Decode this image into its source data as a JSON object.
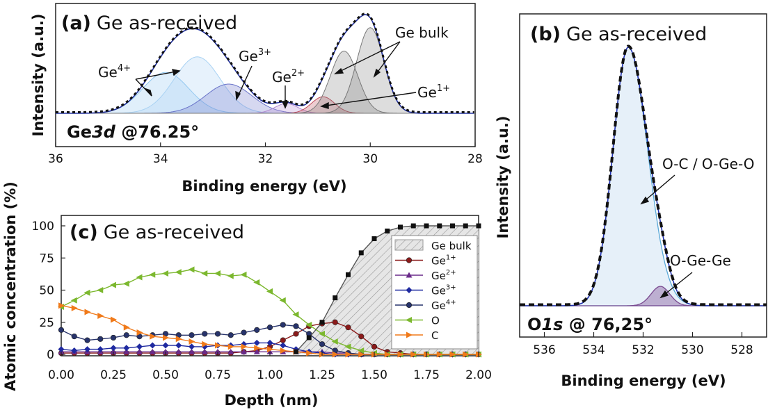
{
  "chart_data": [
    {
      "type": "line",
      "panel": "(a)",
      "title": "Ge as-received",
      "annotation": "Ge3d @76.25°",
      "annotation_parts": {
        "element": "Ge",
        "orbital": "3d",
        "angle": " @76.25°"
      },
      "xlabel": "Binding energy (eV)",
      "ylabel": "Intensity (a.u.)",
      "xlim": [
        36,
        28
      ],
      "xticks": [
        "36",
        "34",
        "32",
        "30",
        "28"
      ],
      "grid": false,
      "components": [
        {
          "name": "Ge4+",
          "center": 33.9,
          "height": 0.42,
          "color": "#8ec6ef"
        },
        {
          "name": "Ge4+",
          "center": 33.3,
          "height": 0.58,
          "color": "#a9d2f3"
        },
        {
          "name": "Ge3+",
          "center": 32.7,
          "height": 0.3,
          "color": "#6a74c9"
        },
        {
          "name": "Ge2+",
          "center": 31.6,
          "height": 0.1,
          "color": "#b28ad0"
        },
        {
          "name": "Ge1+",
          "center": 30.9,
          "height": 0.17,
          "color": "#c04a5a"
        },
        {
          "name": "Ge bulk",
          "center": 30.5,
          "height": 0.64,
          "color": "#777777"
        },
        {
          "name": "Ge bulk",
          "center": 30.0,
          "height": 0.88,
          "color": "#777777"
        }
      ],
      "labels": [
        {
          "base": "Ge",
          "sup": "4+"
        },
        {
          "base": "Ge",
          "sup": "3+"
        },
        {
          "base": "Ge",
          "sup": "2+"
        },
        {
          "base": "Ge",
          "sup": "1+"
        },
        {
          "base": "Ge bulk",
          "sup": ""
        }
      ]
    },
    {
      "type": "line",
      "panel": "(b)",
      "title": "Ge as-received",
      "annotation": "O1s @ 76,25°",
      "annotation_parts": {
        "element": "O",
        "orbital": "1s",
        "angle": " @ 76,25°"
      },
      "xlabel": "Binding energy (eV)",
      "ylabel": "Intensity (a.u.)",
      "xlim": [
        537,
        527
      ],
      "xticks": [
        "536",
        "534",
        "532",
        "530",
        "528"
      ],
      "grid": false,
      "components": [
        {
          "name": "O-C / O-Ge-O",
          "center": 532.6,
          "height": 1.0,
          "color": "#5aa8d8"
        },
        {
          "name": "O-Ge-Ge",
          "center": 531.3,
          "height": 0.075,
          "color": "#7a4a90"
        }
      ],
      "labels": [
        "O-C / O-Ge-O",
        "O-Ge-Ge"
      ]
    },
    {
      "type": "line",
      "panel": "(c)",
      "title": "Ge as-received",
      "xlabel": "Depth (nm)",
      "ylabel": "Atomic concentration (%)",
      "xlim": [
        0,
        2.0
      ],
      "ylim": [
        0,
        105
      ],
      "xticks": [
        "0.00",
        "0.25",
        "0.50",
        "0.75",
        "1.00",
        "1.25",
        "1.50",
        "1.75",
        "2.00"
      ],
      "yticks": [
        "0",
        "25",
        "50",
        "75",
        "100"
      ],
      "grid": false,
      "legend": "top-right",
      "x": [
        0,
        0.0625,
        0.125,
        0.1875,
        0.25,
        0.3125,
        0.375,
        0.4375,
        0.5,
        0.5625,
        0.625,
        0.6875,
        0.75,
        0.8125,
        0.875,
        0.9375,
        1.0,
        1.0625,
        1.125,
        1.1875,
        1.25,
        1.3125,
        1.375,
        1.4375,
        1.5,
        1.5625,
        1.625,
        1.6875,
        1.75,
        1.8125,
        1.875,
        1.9375,
        2.0
      ],
      "series": [
        {
          "name": "Ge bulk",
          "label_base": "Ge bulk",
          "label_sup": "",
          "color": "#111111",
          "marker": "square",
          "fill": true,
          "values": [
            0,
            0,
            0,
            0,
            0,
            0,
            0,
            0,
            0,
            0,
            0,
            0,
            0,
            0,
            0,
            0,
            0,
            0,
            0,
            0,
            0,
            0,
            0,
            0,
            0,
            0,
            0,
            0,
            0,
            0,
            0,
            0,
            0
          ],
          "points": [
            [
              1.125,
              2
            ],
            [
              1.1875,
              13
            ],
            [
              1.25,
              25
            ],
            [
              1.3125,
              44
            ],
            [
              1.375,
              62
            ],
            [
              1.4375,
              79
            ],
            [
              1.5,
              90
            ],
            [
              1.5625,
              96
            ],
            [
              1.625,
              99
            ],
            [
              1.6875,
              100
            ],
            [
              1.75,
              100
            ],
            [
              1.8125,
              100
            ],
            [
              1.875,
              100
            ],
            [
              1.9375,
              100
            ],
            [
              2.0,
              100
            ]
          ]
        },
        {
          "name": "Ge1+",
          "label_base": "Ge",
          "label_sup": "1+",
          "color": "#8b1a1a",
          "marker": "circle",
          "values": [
            1,
            1,
            1,
            1,
            1,
            1,
            1,
            1,
            1,
            1,
            1,
            1,
            1,
            1,
            2,
            3,
            6,
            11,
            16,
            22,
            24,
            25,
            21,
            14,
            6,
            2,
            1,
            0,
            0,
            0,
            0,
            0,
            0
          ]
        },
        {
          "name": "Ge2+",
          "label_base": "Ge",
          "label_sup": "2+",
          "color": "#6a2a8a",
          "marker": "triangle-up",
          "values": [
            2,
            2,
            2,
            2,
            2,
            2,
            2,
            2,
            2,
            2,
            2,
            2,
            2,
            2,
            2,
            2,
            2,
            2,
            2,
            2,
            2,
            1,
            1,
            0,
            0,
            0,
            0,
            0,
            0,
            0,
            0,
            0,
            0
          ]
        },
        {
          "name": "Ge3+",
          "label_base": "Ge",
          "label_sup": "3+",
          "color": "#1f2aa0",
          "marker": "diamond",
          "values": [
            4,
            3,
            4,
            4,
            5,
            5,
            6,
            7,
            7,
            7,
            6,
            6,
            7,
            7,
            8,
            9,
            9,
            7,
            4,
            2,
            1,
            0,
            0,
            0,
            0,
            0,
            0,
            0,
            0,
            0,
            0,
            0,
            0
          ]
        },
        {
          "name": "Ge4+",
          "label_base": "Ge",
          "label_sup": "4+",
          "color": "#27336b",
          "marker": "circle-dark",
          "values": [
            19,
            14,
            11,
            12,
            13,
            15,
            14,
            15,
            16,
            15,
            15,
            16,
            16,
            15,
            17,
            19,
            21,
            23,
            22,
            16,
            8,
            3,
            1,
            0,
            0,
            0,
            0,
            0,
            0,
            0,
            0,
            0,
            0
          ]
        },
        {
          "name": "O",
          "label_base": "O",
          "label_sup": "",
          "color": "#7cb82f",
          "marker": "triangle-left",
          "values": [
            37,
            42,
            48,
            50,
            54,
            55,
            60,
            62,
            63,
            64,
            66,
            63,
            63,
            61,
            62,
            56,
            49,
            42,
            31,
            23,
            16,
            10,
            6,
            3,
            1,
            0,
            0,
            0,
            0,
            0,
            0,
            0,
            0
          ]
        },
        {
          "name": "C",
          "label_base": "C",
          "label_sup": "",
          "color": "#f07a1a",
          "marker": "triangle-right",
          "values": [
            38,
            36,
            33,
            30,
            27,
            21,
            17,
            14,
            13,
            12,
            10,
            8,
            7,
            6,
            6,
            5,
            4,
            3,
            2,
            1,
            0,
            0,
            0,
            0,
            0,
            0,
            0,
            0,
            0,
            0,
            0,
            0,
            0
          ]
        }
      ]
    }
  ]
}
